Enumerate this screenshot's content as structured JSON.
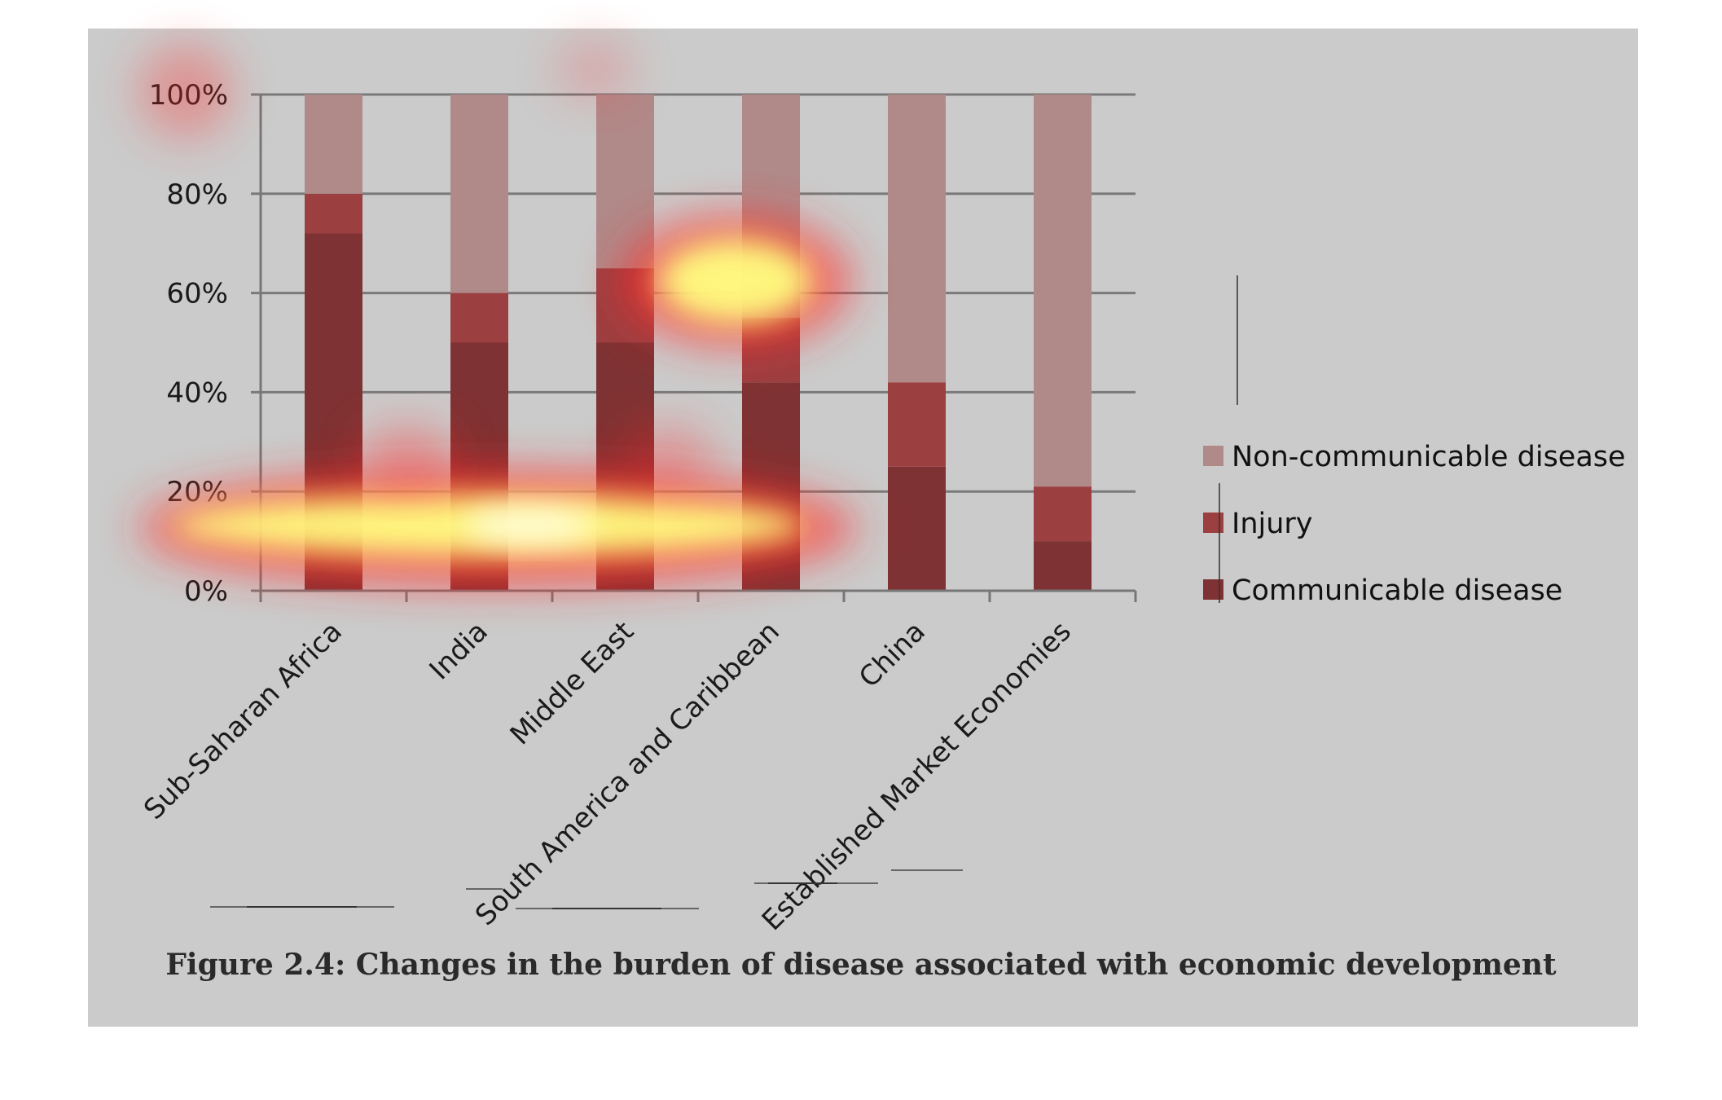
{
  "chart_data": {
    "type": "bar",
    "stacked": true,
    "percent": true,
    "categories": [
      "Sub-Saharan Africa",
      "India",
      "Middle East",
      "South America and Caribbean",
      "China",
      "Established Market Economies"
    ],
    "series": [
      {
        "name": "Communicable disease",
        "color": "#7f3233",
        "values": [
          72,
          50,
          50,
          42,
          25,
          10
        ]
      },
      {
        "name": "Injury",
        "color": "#9c3f41",
        "values": [
          8,
          10,
          15,
          13,
          17,
          11
        ]
      },
      {
        "name": "Non-communicable disease",
        "color": "#b08a89",
        "values": [
          20,
          40,
          35,
          45,
          58,
          79
        ]
      }
    ],
    "yticks": [
      "0%",
      "20%",
      "40%",
      "60%",
      "80%",
      "100%"
    ],
    "ylim": [
      0,
      100
    ],
    "grid": true,
    "legend_position": "right"
  },
  "caption": "Figure 2.4: Changes in the burden of disease associated with economic development",
  "colors": {
    "panel_background": "#cbcbcb",
    "gridline": "#7a7a7a",
    "heatmap_hot": "#ffff80",
    "heatmap_warm": "#ff2a2a"
  }
}
